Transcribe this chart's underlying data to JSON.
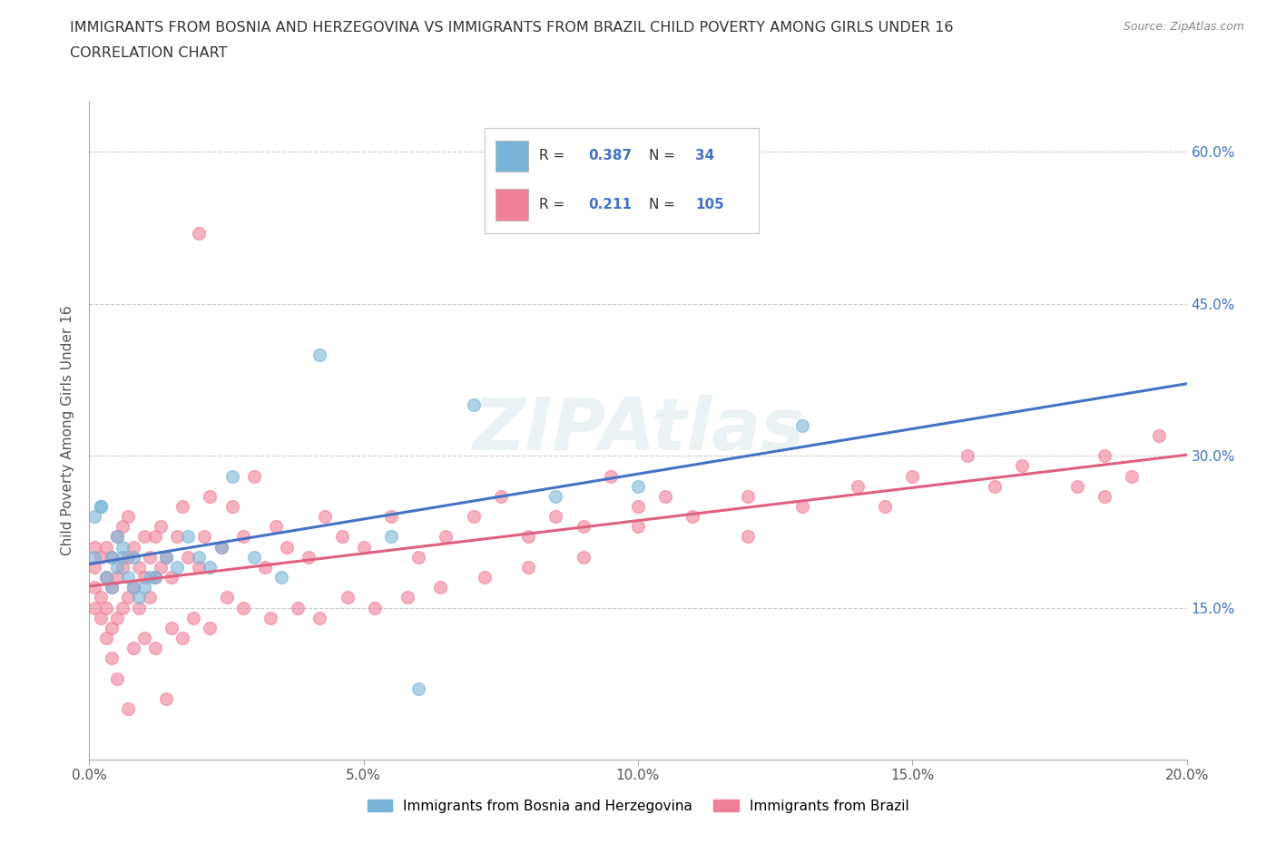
{
  "title_line1": "IMMIGRANTS FROM BOSNIA AND HERZEGOVINA VS IMMIGRANTS FROM BRAZIL CHILD POVERTY AMONG GIRLS UNDER 16",
  "title_line2": "CORRELATION CHART",
  "source_text": "Source: ZipAtlas.com",
  "ylabel": "Child Poverty Among Girls Under 16",
  "xlim": [
    0.0,
    0.2
  ],
  "ylim": [
    0.0,
    0.65
  ],
  "yticks": [
    0.15,
    0.3,
    0.45,
    0.6
  ],
  "ytick_labels": [
    "15.0%",
    "30.0%",
    "45.0%",
    "60.0%"
  ],
  "xticks": [
    0.0,
    0.05,
    0.1,
    0.15,
    0.2
  ],
  "xtick_labels": [
    "0.0%",
    "5.0%",
    "10.0%",
    "15.0%",
    "20.0%"
  ],
  "bosnia_color": "#7ab4d8",
  "brazil_color": "#f08098",
  "bosnia_line_color": "#4472c4",
  "brazil_line_color": "#e06080",
  "bosnia_R": "0.387",
  "bosnia_N": "34",
  "brazil_R": "0.211",
  "brazil_N": "105",
  "stat_color": "#4472c4",
  "legend_label_1": "Immigrants from Bosnia and Herzegovina",
  "legend_label_2": "Immigrants from Brazil",
  "watermark": "ZIPAtlas",
  "bosnia_scatter_x": [
    0.001,
    0.001,
    0.002,
    0.002,
    0.003,
    0.004,
    0.004,
    0.005,
    0.005,
    0.006,
    0.006,
    0.007,
    0.008,
    0.008,
    0.009,
    0.01,
    0.011,
    0.012,
    0.014,
    0.016,
    0.018,
    0.02,
    0.022,
    0.024,
    0.026,
    0.03,
    0.035,
    0.042,
    0.055,
    0.07,
    0.085,
    0.1,
    0.13,
    0.06
  ],
  "bosnia_scatter_y": [
    0.2,
    0.24,
    0.25,
    0.25,
    0.18,
    0.17,
    0.2,
    0.19,
    0.22,
    0.2,
    0.21,
    0.18,
    0.2,
    0.17,
    0.16,
    0.17,
    0.18,
    0.18,
    0.2,
    0.19,
    0.22,
    0.2,
    0.19,
    0.21,
    0.28,
    0.2,
    0.18,
    0.4,
    0.22,
    0.35,
    0.26,
    0.27,
    0.33,
    0.07
  ],
  "brazil_scatter_x": [
    0.001,
    0.001,
    0.001,
    0.001,
    0.002,
    0.002,
    0.002,
    0.003,
    0.003,
    0.003,
    0.004,
    0.004,
    0.004,
    0.005,
    0.005,
    0.005,
    0.006,
    0.006,
    0.006,
    0.007,
    0.007,
    0.007,
    0.008,
    0.008,
    0.009,
    0.009,
    0.01,
    0.01,
    0.011,
    0.011,
    0.012,
    0.012,
    0.013,
    0.013,
    0.014,
    0.015,
    0.016,
    0.017,
    0.018,
    0.02,
    0.021,
    0.022,
    0.024,
    0.026,
    0.028,
    0.03,
    0.032,
    0.034,
    0.036,
    0.04,
    0.043,
    0.046,
    0.05,
    0.055,
    0.06,
    0.065,
    0.07,
    0.075,
    0.08,
    0.085,
    0.09,
    0.095,
    0.1,
    0.105,
    0.11,
    0.12,
    0.13,
    0.14,
    0.15,
    0.16,
    0.17,
    0.18,
    0.185,
    0.19,
    0.195,
    0.003,
    0.004,
    0.005,
    0.008,
    0.01,
    0.012,
    0.015,
    0.017,
    0.019,
    0.022,
    0.025,
    0.028,
    0.033,
    0.038,
    0.042,
    0.047,
    0.052,
    0.058,
    0.064,
    0.072,
    0.08,
    0.09,
    0.1,
    0.12,
    0.145,
    0.165,
    0.185,
    0.007,
    0.014,
    0.02
  ],
  "brazil_scatter_y": [
    0.15,
    0.17,
    0.19,
    0.21,
    0.14,
    0.16,
    0.2,
    0.15,
    0.18,
    0.21,
    0.13,
    0.17,
    0.2,
    0.14,
    0.18,
    0.22,
    0.15,
    0.19,
    0.23,
    0.16,
    0.2,
    0.24,
    0.17,
    0.21,
    0.15,
    0.19,
    0.18,
    0.22,
    0.16,
    0.2,
    0.18,
    0.22,
    0.19,
    0.23,
    0.2,
    0.18,
    0.22,
    0.25,
    0.2,
    0.19,
    0.22,
    0.26,
    0.21,
    0.25,
    0.22,
    0.28,
    0.19,
    0.23,
    0.21,
    0.2,
    0.24,
    0.22,
    0.21,
    0.24,
    0.2,
    0.22,
    0.24,
    0.26,
    0.22,
    0.24,
    0.23,
    0.28,
    0.25,
    0.26,
    0.24,
    0.26,
    0.25,
    0.27,
    0.28,
    0.3,
    0.29,
    0.27,
    0.3,
    0.28,
    0.32,
    0.12,
    0.1,
    0.08,
    0.11,
    0.12,
    0.11,
    0.13,
    0.12,
    0.14,
    0.13,
    0.16,
    0.15,
    0.14,
    0.15,
    0.14,
    0.16,
    0.15,
    0.16,
    0.17,
    0.18,
    0.19,
    0.2,
    0.23,
    0.22,
    0.25,
    0.27,
    0.26,
    0.05,
    0.06,
    0.52
  ]
}
